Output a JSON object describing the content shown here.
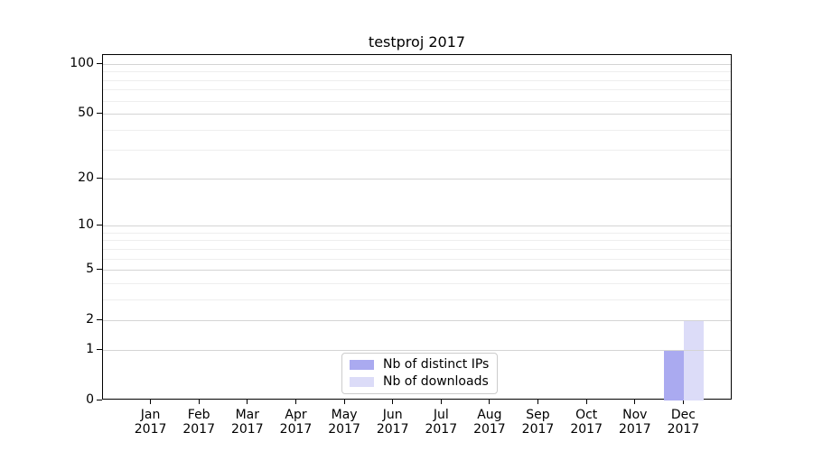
{
  "figure": {
    "background": "#ffffff"
  },
  "chart_data": {
    "type": "bar",
    "title": "testproj 2017",
    "categories": [
      "Jan 2017",
      "Feb 2017",
      "Mar 2017",
      "Apr 2017",
      "May 2017",
      "Jun 2017",
      "Jul 2017",
      "Aug 2017",
      "Sep 2017",
      "Oct 2017",
      "Nov 2017",
      "Dec 2017"
    ],
    "series": [
      {
        "name": "Nb of distinct IPs",
        "color": "#aaaaf0",
        "values": [
          0,
          0,
          0,
          0,
          0,
          0,
          0,
          0,
          0,
          0,
          0,
          1
        ]
      },
      {
        "name": "Nb of downloads",
        "color": "#dcdcf8",
        "values": [
          0,
          0,
          0,
          0,
          0,
          0,
          0,
          0,
          0,
          0,
          0,
          2
        ]
      }
    ],
    "xlabel": "",
    "ylabel": "",
    "y_scale": "log1p",
    "y_ticks": [
      0,
      1,
      2,
      5,
      10,
      20,
      50,
      100
    ],
    "y_minor_ticks": [
      3,
      4,
      6,
      7,
      8,
      9,
      30,
      40,
      60,
      70,
      80,
      90
    ],
    "ylim": [
      0,
      113
    ],
    "grid": "horizontal",
    "legend_position": "lower center"
  },
  "colors": {
    "spine": "#000000",
    "grid_major": "#d4d4d4",
    "grid_minor": "#eeeeee",
    "text": "#000000",
    "legend_border": "#cccccc",
    "background": "#ffffff"
  }
}
